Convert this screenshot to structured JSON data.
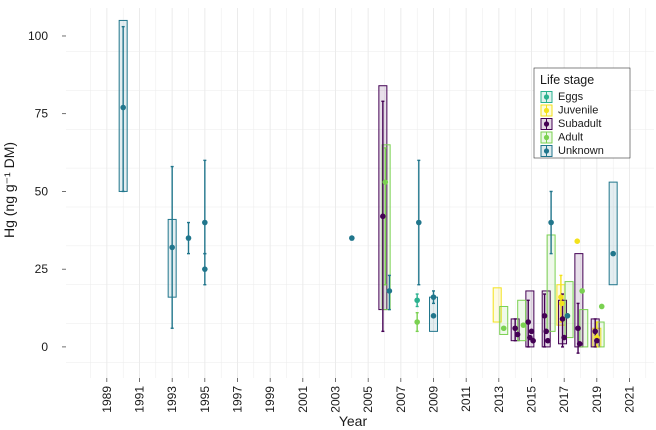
{
  "chart_data": {
    "type": "scatter",
    "title": "",
    "xlabel": "Year",
    "ylabel": "Hg (ng g⁻¹ DM)",
    "xlim": [
      1986.5,
      2022.5
    ],
    "ylim": [
      -10,
      109
    ],
    "x_ticks": [
      1989,
      1991,
      1993,
      1995,
      1997,
      1999,
      2001,
      2003,
      2005,
      2007,
      2009,
      2011,
      2013,
      2015,
      2017,
      2019,
      2021
    ],
    "y_ticks": [
      0,
      25,
      50,
      75,
      100
    ],
    "grid": true,
    "legend": {
      "title": "Life stage",
      "placement": "top-right"
    },
    "series": [
      {
        "name": "Eggs",
        "color": "#2bb18f",
        "points": [
          {
            "x": 2008,
            "y": 15,
            "lo": 13,
            "hi": 17
          }
        ],
        "boxes": []
      },
      {
        "name": "Juvenile",
        "color": "#f3e21b",
        "points": [
          {
            "x": 2017.8,
            "y": 34
          },
          {
            "x": 2016.8,
            "y": 16,
            "lo": 8,
            "hi": 23
          },
          {
            "x": 2016.85,
            "y": 14
          },
          {
            "x": 2019.0,
            "y": 3,
            "lo": 0,
            "hi": 8
          }
        ],
        "boxes": [
          {
            "x": 2012.9,
            "lo": 8,
            "hi": 19
          },
          {
            "x": 2016.8,
            "lo": 7,
            "hi": 20
          },
          {
            "x": 2019.0,
            "lo": 0,
            "hi": 6
          }
        ]
      },
      {
        "name": "Subadult",
        "color": "#440154",
        "points": [
          {
            "x": 2005.9,
            "y": 42,
            "lo": 5,
            "hi": 79
          },
          {
            "x": 2014.0,
            "y": 6,
            "lo": 2,
            "hi": 9
          },
          {
            "x": 2014.15,
            "y": 4
          },
          {
            "x": 2014.8,
            "y": 8,
            "lo": 0,
            "hi": 15
          },
          {
            "x": 2014.9,
            "y": 3
          },
          {
            "x": 2015.0,
            "y": 5
          },
          {
            "x": 2015.1,
            "y": 2
          },
          {
            "x": 2015.8,
            "y": 10,
            "lo": 0,
            "hi": 17
          },
          {
            "x": 2015.9,
            "y": 5
          },
          {
            "x": 2016.0,
            "y": 2
          },
          {
            "x": 2016.9,
            "y": 9,
            "lo": 0,
            "hi": 17
          },
          {
            "x": 2017.0,
            "y": 3
          },
          {
            "x": 2017.85,
            "y": 6,
            "lo": -2,
            "hi": 14
          },
          {
            "x": 2017.95,
            "y": 1
          },
          {
            "x": 2018.9,
            "y": 5,
            "lo": 0,
            "hi": 9
          },
          {
            "x": 2019.0,
            "y": 2
          }
        ],
        "boxes": [
          {
            "x": 2005.9,
            "lo": 12,
            "hi": 84
          },
          {
            "x": 2014.0,
            "lo": 2,
            "hi": 9
          },
          {
            "x": 2014.9,
            "lo": 0,
            "hi": 18
          },
          {
            "x": 2015.9,
            "lo": 0,
            "hi": 18
          },
          {
            "x": 2016.9,
            "lo": 1,
            "hi": 15
          },
          {
            "x": 2017.9,
            "lo": 0,
            "hi": 30
          },
          {
            "x": 2018.9,
            "lo": 0,
            "hi": 9
          }
        ]
      },
      {
        "name": "Adult",
        "color": "#7ad151",
        "points": [
          {
            "x": 2006.05,
            "y": 53,
            "lo": 20,
            "hi": 64
          },
          {
            "x": 2008.0,
            "y": 8,
            "lo": 5,
            "hi": 11
          },
          {
            "x": 2013.3,
            "y": 6
          },
          {
            "x": 2014.5,
            "y": 7
          },
          {
            "x": 2017.2,
            "y": 10
          },
          {
            "x": 2018.1,
            "y": 18
          },
          {
            "x": 2019.3,
            "y": 13
          }
        ],
        "boxes": [
          {
            "x": 2006.1,
            "lo": 12,
            "hi": 65
          },
          {
            "x": 2013.3,
            "lo": 4,
            "hi": 13
          },
          {
            "x": 2014.4,
            "lo": 2,
            "hi": 15
          },
          {
            "x": 2016.2,
            "lo": 5,
            "hi": 36
          },
          {
            "x": 2017.3,
            "lo": 3,
            "hi": 21
          },
          {
            "x": 2018.2,
            "lo": 0,
            "hi": 12
          },
          {
            "x": 2019.2,
            "lo": 0,
            "hi": 8
          }
        ]
      },
      {
        "name": "Unknown",
        "color": "#21768c",
        "points": [
          {
            "x": 1990.0,
            "y": 77,
            "lo": 50,
            "hi": 103
          },
          {
            "x": 1993.0,
            "y": 32,
            "lo": 6,
            "hi": 58
          },
          {
            "x": 1994.0,
            "y": 35,
            "lo": 30,
            "hi": 40
          },
          {
            "x": 1995.0,
            "y": 40,
            "lo": 30,
            "hi": 60
          },
          {
            "x": 1995.0,
            "y": 25,
            "lo": 20,
            "hi": 30
          },
          {
            "x": 2004.0,
            "y": 35
          },
          {
            "x": 2006.3,
            "y": 18,
            "lo": 12,
            "hi": 23
          },
          {
            "x": 2008.1,
            "y": 40,
            "lo": 20,
            "hi": 60
          },
          {
            "x": 2009.0,
            "y": 16,
            "lo": 14,
            "hi": 18
          },
          {
            "x": 2009.0,
            "y": 10
          },
          {
            "x": 2016.2,
            "y": 40,
            "lo": 30,
            "hi": 50
          },
          {
            "x": 2017.2,
            "y": 10
          },
          {
            "x": 2020.0,
            "y": 30
          }
        ],
        "boxes": [
          {
            "x": 1990.0,
            "lo": 50,
            "hi": 105
          },
          {
            "x": 1993.0,
            "lo": 16,
            "hi": 41
          },
          {
            "x": 2009.0,
            "lo": 5,
            "hi": 16
          },
          {
            "x": 2020.0,
            "lo": 20,
            "hi": 53
          }
        ]
      }
    ]
  }
}
